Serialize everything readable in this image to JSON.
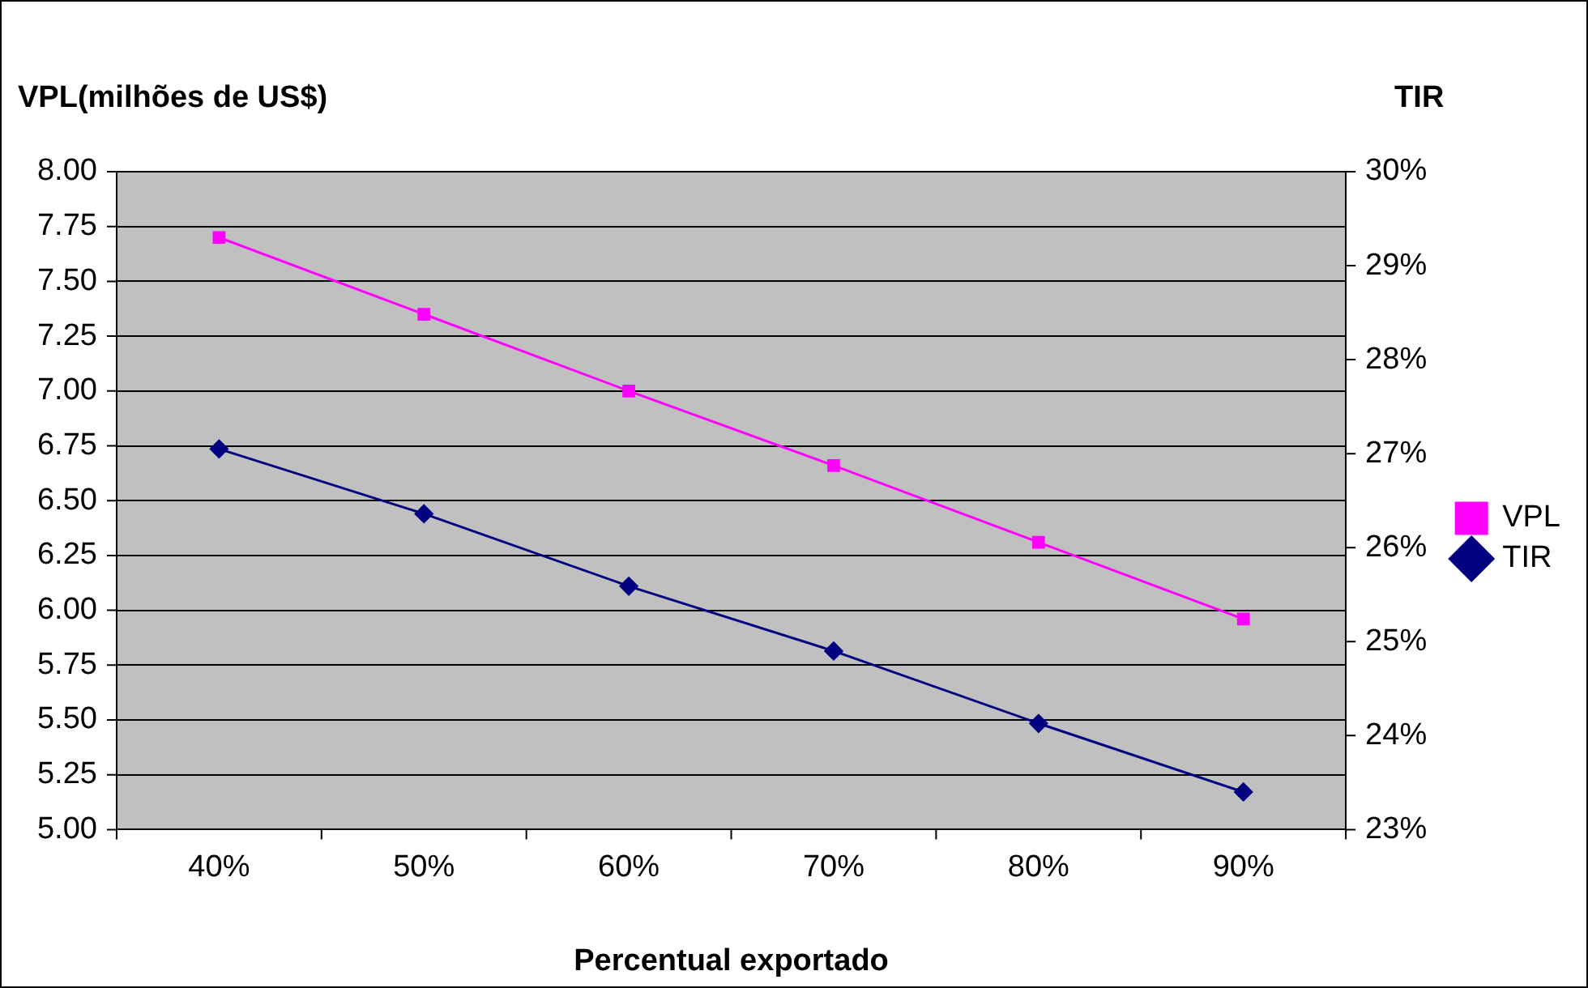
{
  "chart_data": {
    "type": "line",
    "ylabel": "VPL(milhões de US$)",
    "y2label": "TIR",
    "xlabel": "Percentual exportado",
    "categories": [
      "40%",
      "50%",
      "60%",
      "70%",
      "80%",
      "90%"
    ],
    "series": [
      {
        "name": "VPL",
        "color": "#ff00ff",
        "marker": "square",
        "values": [
          7.7,
          7.35,
          7.0,
          6.66,
          6.31,
          5.96
        ]
      },
      {
        "name": "TIR",
        "color": "#000080",
        "marker": "diamond",
        "axis": "y2",
        "values": [
          27.05,
          26.36,
          25.59,
          24.9,
          24.13,
          23.4
        ]
      }
    ],
    "ylim": [
      5,
      8
    ],
    "yticks": [
      {
        "value": 5,
        "label": "5.00"
      },
      {
        "value": 5.25,
        "label": "5.25"
      },
      {
        "value": 5.5,
        "label": "5.50"
      },
      {
        "value": 5.75,
        "label": "5.75"
      },
      {
        "value": 6,
        "label": "6.00"
      },
      {
        "value": 6.25,
        "label": "6.25"
      },
      {
        "value": 6.5,
        "label": "6.50"
      },
      {
        "value": 6.75,
        "label": "6.75"
      },
      {
        "value": 7,
        "label": "7.00"
      },
      {
        "value": 7.25,
        "label": "7.25"
      },
      {
        "value": 7.5,
        "label": "7.50"
      },
      {
        "value": 7.75,
        "label": "7.75"
      },
      {
        "value": 8,
        "label": "8.00"
      }
    ],
    "y2lim": [
      23,
      30
    ],
    "y2ticks": [
      {
        "value": 23,
        "label": "23%"
      },
      {
        "value": 24,
        "label": "24%"
      },
      {
        "value": 25,
        "label": "25%"
      },
      {
        "value": 26,
        "label": "26%"
      },
      {
        "value": 27,
        "label": "27%"
      },
      {
        "value": 28,
        "label": "28%"
      },
      {
        "value": 29,
        "label": "29%"
      },
      {
        "value": 30,
        "label": "30%"
      }
    ],
    "grid": "y",
    "legend": "right"
  }
}
